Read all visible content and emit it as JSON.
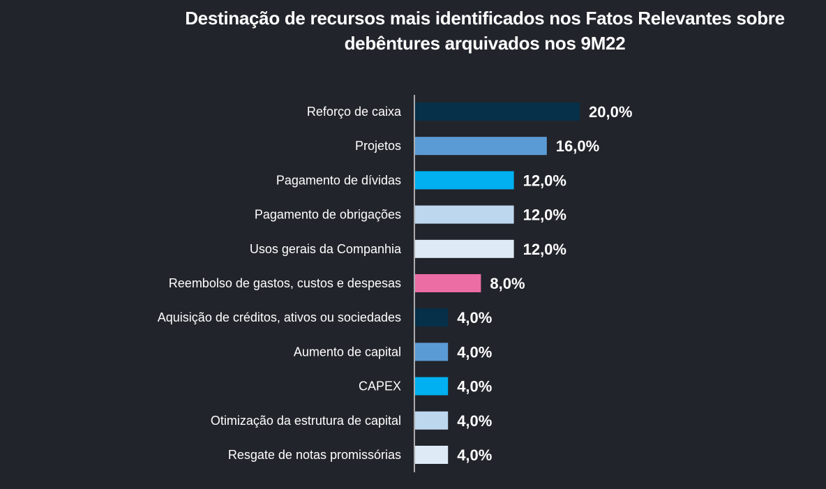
{
  "chart_data": {
    "type": "bar",
    "orientation": "horizontal",
    "title_lines": [
      "Destinação de recursos mais identificados nos Fatos Relevantes sobre",
      "debêntures arquivados nos 9M22"
    ],
    "categories": [
      "Reforço de caixa",
      "Projetos",
      "Pagamento de dívidas",
      "Pagamento de obrigações",
      "Usos gerais da Companhia",
      "Reembolso de gastos, custos e despesas",
      "Aquisição de créditos, ativos ou sociedades",
      "Aumento de capital",
      "CAPEX",
      "Otimização da estrutura de capital",
      "Resgate de notas promissórias"
    ],
    "values": [
      20,
      16,
      12,
      12,
      12,
      8,
      4,
      4,
      4,
      4,
      4
    ],
    "labels": [
      "20,0%",
      "16,0%",
      "12,0%",
      "12,0%",
      "12,0%",
      "8,0%",
      "4,0%",
      "4,0%",
      "4,0%",
      "4,0%",
      "4,0%"
    ],
    "colors": [
      "#06304a",
      "#5b9bd5",
      "#00b0f0",
      "#bdd7ee",
      "#deebf7",
      "#ec6ca4",
      "#06304a",
      "#5b9bd5",
      "#00b0f0",
      "#bdd7ee",
      "#deebf7"
    ],
    "xlim": [
      0,
      20
    ],
    "xlabel": "",
    "ylabel": "",
    "grid": false,
    "legend": "none"
  }
}
